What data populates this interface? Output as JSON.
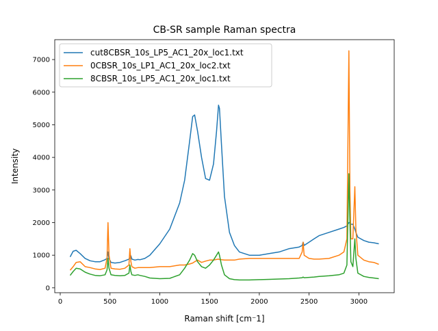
{
  "chart_data": {
    "type": "line",
    "title": "CB-SR sample Raman spectra",
    "xlabel": "Raman shift [cm⁻1]",
    "ylabel": "Intensity",
    "x": [
      100,
      130,
      160,
      200,
      250,
      300,
      350,
      400,
      450,
      470,
      480,
      490,
      510,
      550,
      600,
      650,
      690,
      700,
      710,
      720,
      750,
      780,
      800,
      850,
      900,
      1000,
      1100,
      1200,
      1250,
      1300,
      1330,
      1350,
      1380,
      1420,
      1460,
      1500,
      1540,
      1570,
      1590,
      1600,
      1620,
      1650,
      1700,
      1750,
      1800,
      1900,
      2000,
      2100,
      2200,
      2300,
      2400,
      2430,
      2440,
      2450,
      2500,
      2550,
      2600,
      2700,
      2800,
      2850,
      2880,
      2900,
      2910,
      2920,
      2940,
      2960,
      2970,
      2990,
      3050,
      3100,
      3150,
      3200
    ],
    "series": [
      {
        "name": "cut8CBSR_10s_LP5_AC1_20x_loc1.txt",
        "color": "#1f77b4",
        "values": [
          950,
          1120,
          1150,
          1050,
          900,
          830,
          800,
          800,
          860,
          900,
          1100,
          900,
          780,
          760,
          780,
          830,
          880,
          900,
          980,
          880,
          850,
          870,
          860,
          900,
          1000,
          1350,
          1800,
          2600,
          3300,
          4500,
          5250,
          5300,
          4800,
          4000,
          3350,
          3300,
          3800,
          4800,
          5600,
          5500,
          4400,
          2800,
          1700,
          1300,
          1100,
          1000,
          1000,
          1050,
          1100,
          1200,
          1250,
          1300,
          1400,
          1300,
          1400,
          1500,
          1600,
          1700,
          1800,
          1850,
          1900,
          2000,
          2000,
          1950,
          1950,
          1800,
          1700,
          1550,
          1450,
          1400,
          1380,
          1350
        ]
      },
      {
        "name": "0CBSR_10s_LP1_AC1_20x_loc2.txt",
        "color": "#ff7f0e",
        "values": [
          540,
          650,
          780,
          800,
          650,
          620,
          580,
          560,
          600,
          900,
          2000,
          1000,
          600,
          580,
          570,
          600,
          700,
          1200,
          800,
          650,
          600,
          620,
          620,
          620,
          620,
          650,
          650,
          700,
          700,
          730,
          760,
          800,
          850,
          780,
          820,
          850,
          850,
          870,
          880,
          870,
          860,
          850,
          850,
          850,
          880,
          900,
          900,
          900,
          900,
          900,
          900,
          1100,
          1400,
          1000,
          900,
          880,
          880,
          900,
          1000,
          1100,
          1500,
          7270,
          3000,
          1500,
          1500,
          3100,
          1800,
          1000,
          850,
          800,
          780,
          720
        ]
      },
      {
        "name": "8CBSR_10s_LP5_AC1_20x_loc1.txt",
        "color": "#2ca02c",
        "values": [
          380,
          500,
          600,
          580,
          480,
          420,
          380,
          370,
          400,
          550,
          900,
          600,
          400,
          380,
          370,
          380,
          450,
          700,
          500,
          400,
          380,
          400,
          380,
          350,
          300,
          280,
          290,
          400,
          600,
          850,
          1050,
          1000,
          800,
          650,
          600,
          700,
          850,
          1000,
          1100,
          1000,
          700,
          400,
          280,
          250,
          240,
          240,
          250,
          260,
          270,
          280,
          300,
          310,
          330,
          310,
          320,
          330,
          350,
          370,
          400,
          450,
          700,
          3500,
          2000,
          800,
          650,
          1500,
          900,
          450,
          350,
          320,
          300,
          280
        ]
      }
    ],
    "xlim": [
      -55,
      3355
    ],
    "ylim": [
      -150,
      7610
    ],
    "xticks": [
      0,
      500,
      1000,
      1500,
      2000,
      2500,
      3000
    ],
    "yticks": [
      0,
      1000,
      2000,
      3000,
      4000,
      5000,
      6000,
      7000
    ],
    "legend": "upper left"
  }
}
